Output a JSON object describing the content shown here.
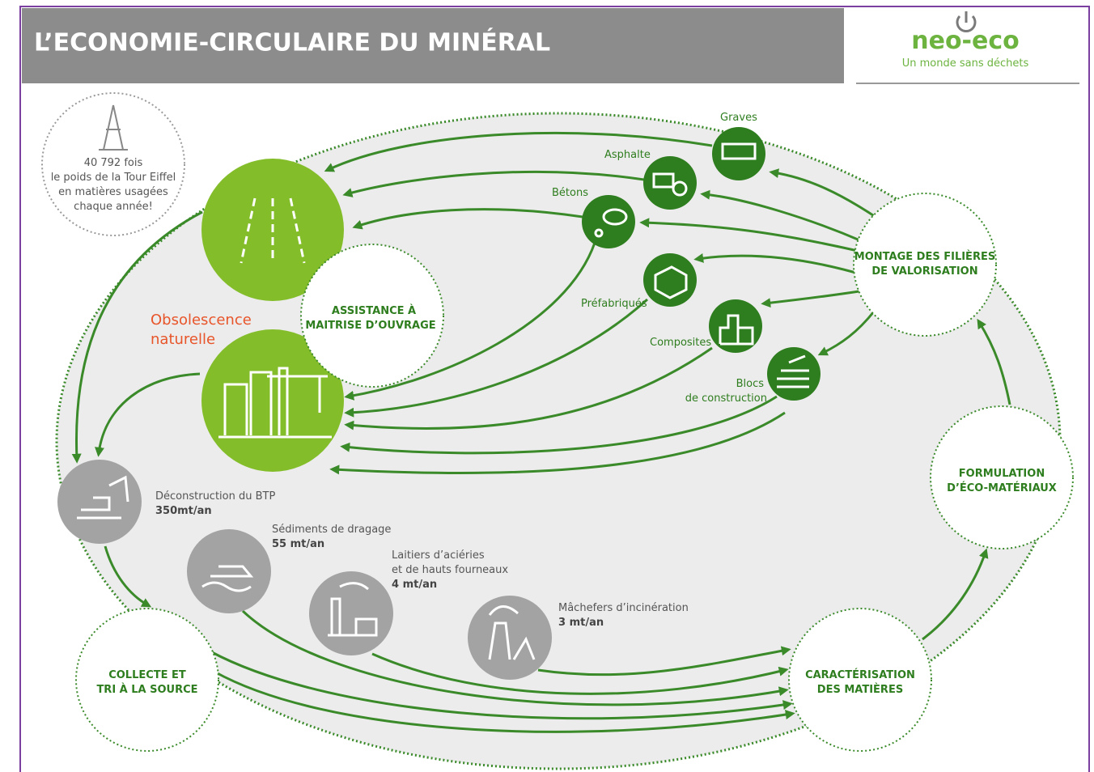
{
  "header": {
    "title": "L’ECONOMIE-CIRCULAIRE DU MINÉRAL"
  },
  "logo": {
    "name": "neo-eco",
    "tagline": "Un monde sans déchets"
  },
  "fact": {
    "lines": [
      "40 792 fois",
      "le poids de la Tour Eiffel",
      "en matières usagées",
      "chaque année!"
    ]
  },
  "obsolescence": {
    "lines": [
      "Obsolescence",
      "naturelle"
    ]
  },
  "stages": [
    {
      "lines": [
        "ASSISTANCE À",
        "MAITRISE D’OUVRAGE"
      ]
    },
    {
      "lines": [
        "MONTAGE DES FILIÈRES",
        "DE VALORISATION"
      ]
    },
    {
      "lines": [
        "FORMULATION",
        "D’ÉCO-MATÉRIAUX"
      ]
    },
    {
      "lines": [
        "CARACTÉRISATION",
        "DES MATIÈRES"
      ]
    },
    {
      "lines": [
        "COLLECTE ET",
        "TRI À LA SOURCE"
      ]
    }
  ],
  "products": [
    {
      "lines": [
        "Graves"
      ]
    },
    {
      "lines": [
        "Asphalte"
      ]
    },
    {
      "lines": [
        "Bétons"
      ]
    },
    {
      "lines": [
        "Préfabriqués"
      ]
    },
    {
      "lines": [
        "Composites"
      ]
    },
    {
      "lines": [
        "Blocs",
        "de construction"
      ]
    }
  ],
  "sources": [
    {
      "lines": [
        "Déconstruction du BTP"
      ],
      "amount": "350mt/an"
    },
    {
      "lines": [
        "Sédiments de dragage"
      ],
      "amount": "55 mt/an"
    },
    {
      "lines": [
        "Laitiers d’aciéries",
        "et de hauts fourneaux"
      ],
      "amount": "4 mt/an"
    },
    {
      "lines": [
        "Mâchefers d’incinération"
      ],
      "amount": "3 mt/an"
    }
  ]
}
